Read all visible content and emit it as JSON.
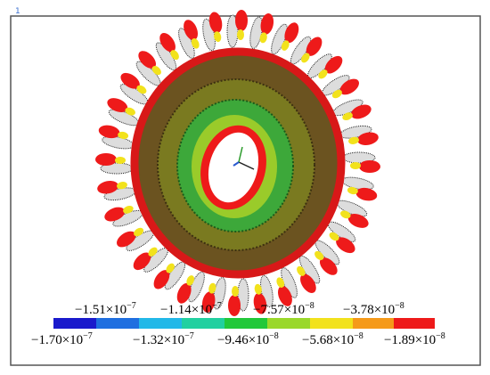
{
  "marker": "1",
  "legend": {
    "top_labels": [
      {
        "base": "−1.51×10",
        "exp": "−7"
      },
      {
        "base": "−1.14×10",
        "exp": "−7"
      },
      {
        "base": "−7.57×10",
        "exp": "−8"
      },
      {
        "base": "−3.78×10",
        "exp": "−8"
      }
    ],
    "bottom_labels": [
      {
        "base": "−1.70×10",
        "exp": "−7"
      },
      {
        "base": "−1.32×10",
        "exp": "−7"
      },
      {
        "base": "−9.46×10",
        "exp": "−8"
      },
      {
        "base": "−5.68×10",
        "exp": "−8"
      },
      {
        "base": "−1.89×10",
        "exp": "−8"
      }
    ]
  }
}
